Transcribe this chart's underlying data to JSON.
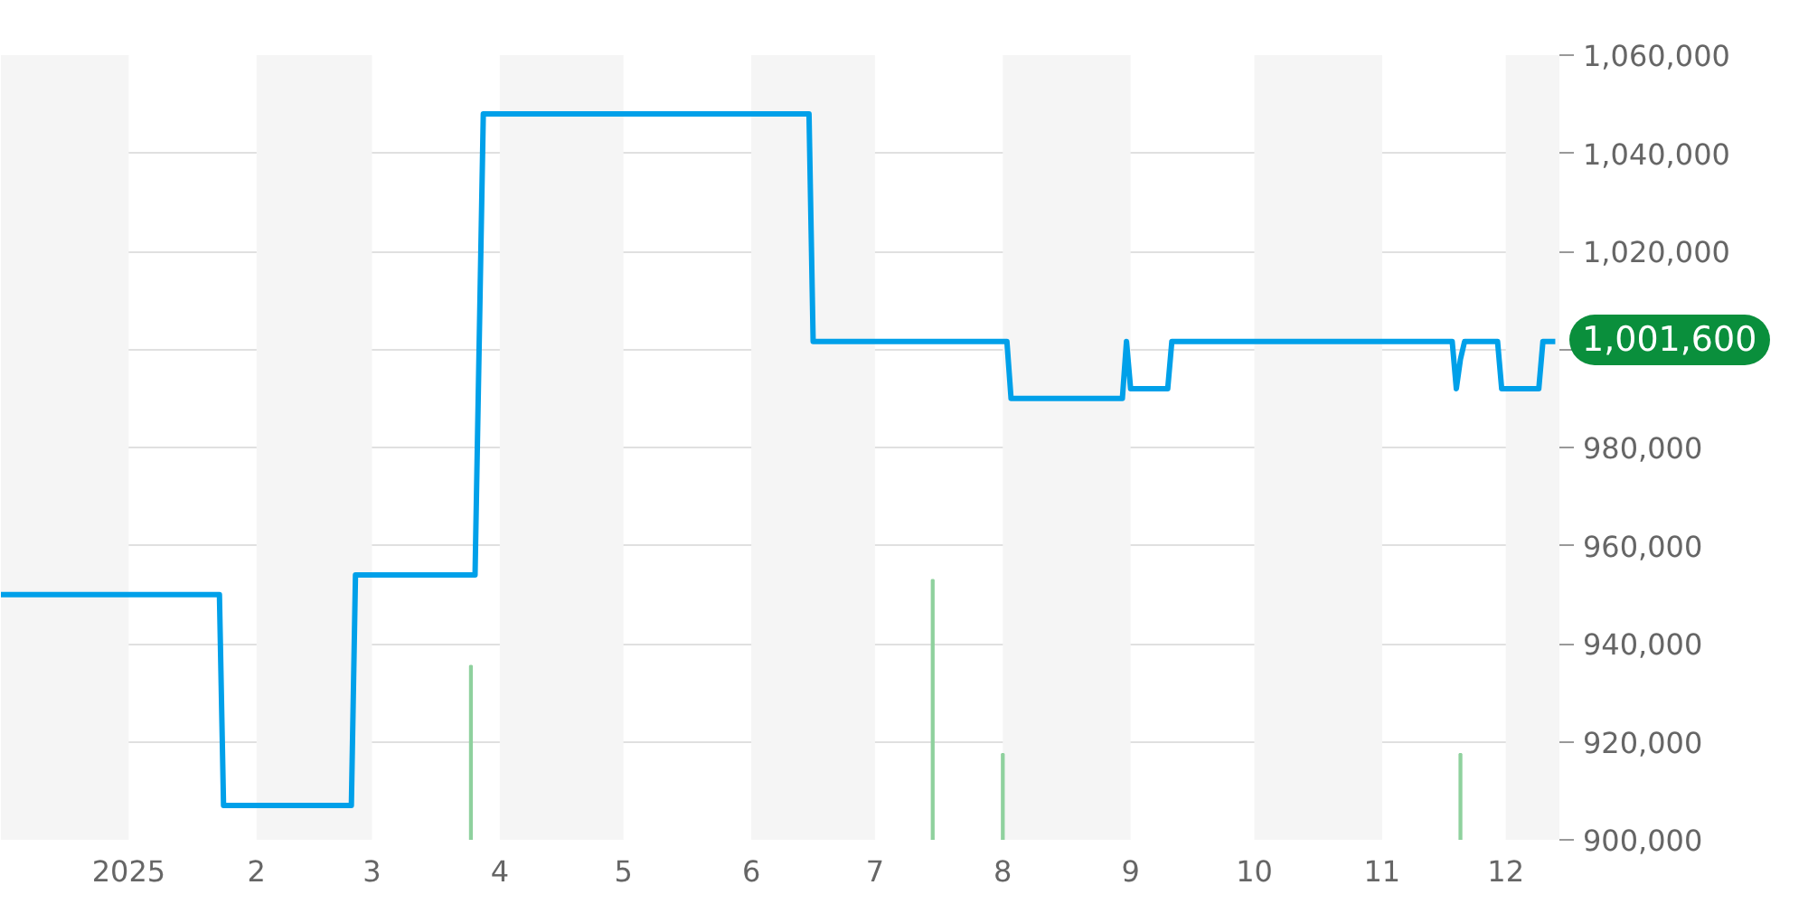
{
  "chart_data": {
    "type": "line",
    "series": [
      {
        "color": "#00a0e9",
        "x": [
          "2024-12-01",
          "2025-01-23",
          "2025-01-24",
          "2025-02-24",
          "2025-02-25",
          "2025-03-26",
          "2025-03-28",
          "2025-06-15",
          "2025-06-16",
          "2025-08-02",
          "2025-08-03",
          "2025-08-30",
          "2025-08-31",
          "2025-09-01",
          "2025-09-10",
          "2025-09-11",
          "2025-11-18",
          "2025-11-19",
          "2025-11-20",
          "2025-11-21",
          "2025-11-29",
          "2025-11-30",
          "2025-12-09",
          "2025-12-10",
          "2025-12-13"
        ],
        "values": [
          950000,
          950000,
          907000,
          907000,
          954000,
          954000,
          1048000,
          1048000,
          1001600,
          1001600,
          990000,
          990000,
          1001600,
          992000,
          992000,
          1001600,
          1001600,
          992000,
          998000,
          1001600,
          1001600,
          992000,
          992000,
          1001600,
          1001600
        ]
      },
      {
        "type": "bar",
        "color": "#8fd19e",
        "x": [
          "2025-03-25",
          "2025-07-15",
          "2025-08-01",
          "2025-11-20"
        ],
        "values": [
          935500,
          953000,
          917500,
          917500
        ]
      }
    ],
    "xlim": [
      "2024-12-01",
      "2025-12-14"
    ],
    "xticks": [
      {
        "value": "2025-01-01",
        "label": "2025"
      },
      {
        "value": "2025-02-01",
        "label": "2"
      },
      {
        "value": "2025-03-01",
        "label": "3"
      },
      {
        "value": "2025-04-01",
        "label": "4"
      },
      {
        "value": "2025-05-01",
        "label": "5"
      },
      {
        "value": "2025-06-01",
        "label": "6"
      },
      {
        "value": "2025-07-01",
        "label": "7"
      },
      {
        "value": "2025-08-01",
        "label": "8"
      },
      {
        "value": "2025-09-01",
        "label": "9"
      },
      {
        "value": "2025-10-01",
        "label": "10"
      },
      {
        "value": "2025-11-01",
        "label": "11"
      },
      {
        "value": "2025-12-01",
        "label": "12"
      }
    ],
    "ylim": [
      900000,
      1060000
    ],
    "yticks": [
      {
        "value": 900000,
        "label": "900,000"
      },
      {
        "value": 920000,
        "label": "920,000"
      },
      {
        "value": 940000,
        "label": "940,000"
      },
      {
        "value": 960000,
        "label": "960,000"
      },
      {
        "value": 980000,
        "label": "980,000"
      },
      {
        "value": 1000000,
        "label": null
      },
      {
        "value": 1020000,
        "label": "1,020,000"
      },
      {
        "value": 1040000,
        "label": "1,040,000"
      },
      {
        "value": 1060000,
        "label": "1,060,000"
      }
    ],
    "bands": [
      {
        "axis": "x",
        "from": "2024-12-01",
        "to": "2025-01-01",
        "color": "#f5f5f5"
      },
      {
        "axis": "x",
        "from": "2025-02-01",
        "to": "2025-03-01",
        "color": "#f5f5f5"
      },
      {
        "axis": "x",
        "from": "2025-04-01",
        "to": "2025-05-01",
        "color": "#f5f5f5"
      },
      {
        "axis": "x",
        "from": "2025-06-01",
        "to": "2025-07-01",
        "color": "#f5f5f5"
      },
      {
        "axis": "x",
        "from": "2025-08-01",
        "to": "2025-09-01",
        "color": "#f5f5f5"
      },
      {
        "axis": "x",
        "from": "2025-10-01",
        "to": "2025-11-01",
        "color": "#f5f5f5"
      },
      {
        "axis": "x",
        "from": "2025-12-01",
        "to": "2025-12-14",
        "color": "#f5f5f5"
      }
    ],
    "annotations": [
      "1,001,600"
    ],
    "grid": "y"
  }
}
